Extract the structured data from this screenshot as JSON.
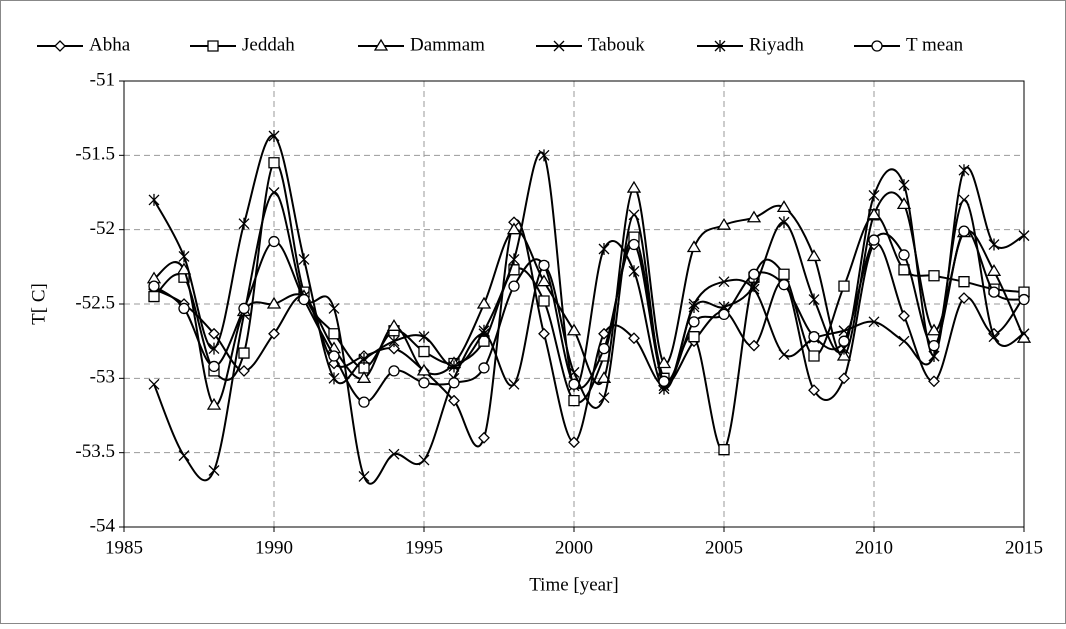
{
  "chart_data": {
    "type": "line",
    "smooth": true,
    "x_label": "Time [year]",
    "y_label": "T[ C]",
    "x": [
      1986,
      1987,
      1988,
      1989,
      1990,
      1991,
      1992,
      1993,
      1994,
      1995,
      1996,
      1997,
      1998,
      1999,
      2000,
      2001,
      2002,
      2003,
      2004,
      2005,
      2006,
      2007,
      2008,
      2009,
      2010,
      2011,
      2012,
      2013,
      2014,
      2015
    ],
    "xlim": [
      1985,
      2015
    ],
    "xticks": [
      1985,
      1990,
      1995,
      2000,
      2005,
      2010,
      2015
    ],
    "ylim": [
      -54,
      -51
    ],
    "yticks": [
      -54,
      -53.5,
      -53,
      -52.5,
      -52,
      -51.5,
      -51
    ],
    "grid": true,
    "legend": "top",
    "series": [
      {
        "name": "Abha",
        "color": "#000000",
        "marker": "diamond",
        "values": [
          -52.4,
          -52.5,
          -52.7,
          -52.95,
          -52.7,
          -52.45,
          -52.9,
          -52.85,
          -52.8,
          -52.95,
          -53.15,
          -53.4,
          -51.95,
          -52.7,
          -53.43,
          -52.7,
          -52.73,
          -53.05,
          -52.75,
          -52.55,
          -52.78,
          -52.35,
          -53.08,
          -53.0,
          -52.1,
          -52.58,
          -53.02,
          -52.46,
          -52.7,
          -52.45
        ]
      },
      {
        "name": "Jeddah",
        "color": "#000000",
        "marker": "square",
        "values": [
          -52.45,
          -52.32,
          -52.95,
          -52.83,
          -51.55,
          -52.42,
          -52.7,
          -52.93,
          -52.68,
          -52.82,
          -52.9,
          -52.75,
          -52.27,
          -52.48,
          -53.15,
          -52.85,
          -52.05,
          -53.0,
          -52.72,
          -53.48,
          -52.32,
          -52.3,
          -52.85,
          -52.38,
          -51.9,
          -52.27,
          -52.31,
          -52.35,
          -52.4,
          -52.42
        ]
      },
      {
        "name": "Dammam",
        "color": "#000000",
        "marker": "triangle",
        "values": [
          -52.33,
          -52.27,
          -53.18,
          -52.55,
          -52.5,
          -52.45,
          -52.8,
          -53.0,
          -52.65,
          -52.95,
          -52.9,
          -52.5,
          -52.0,
          -52.35,
          -52.68,
          -53.0,
          -51.72,
          -52.9,
          -52.12,
          -51.97,
          -51.92,
          -51.85,
          -52.18,
          -52.85,
          -51.9,
          -51.83,
          -52.68,
          -52.02,
          -52.28,
          -52.73
        ]
      },
      {
        "name": "Tabouk",
        "color": "#000000",
        "marker": "x",
        "values": [
          -53.04,
          -53.52,
          -53.62,
          -52.57,
          -51.75,
          -52.45,
          -52.53,
          -53.66,
          -53.51,
          -53.55,
          -53.0,
          -52.7,
          -53.04,
          -52.25,
          -52.96,
          -53.13,
          -51.9,
          -53.05,
          -52.5,
          -52.35,
          -52.4,
          -52.84,
          -52.73,
          -52.68,
          -52.62,
          -52.75,
          -52.85,
          -51.8,
          -52.72,
          -52.7
        ]
      },
      {
        "name": "Riyadh",
        "color": "#000000",
        "marker": "asterisk",
        "values": [
          -51.8,
          -52.18,
          -52.8,
          -51.96,
          -51.37,
          -52.2,
          -53.0,
          -52.87,
          -52.75,
          -52.72,
          -52.92,
          -52.68,
          -52.2,
          -51.5,
          -53.05,
          -52.13,
          -52.28,
          -53.07,
          -52.52,
          -52.52,
          -52.38,
          -51.95,
          -52.47,
          -52.8,
          -51.77,
          -51.7,
          -52.85,
          -51.6,
          -52.1,
          -52.04
        ]
      },
      {
        "name": "T mean",
        "color": "#000000",
        "marker": "circle",
        "values": [
          -52.38,
          -52.53,
          -52.92,
          -52.53,
          -52.08,
          -52.47,
          -52.85,
          -53.16,
          -52.95,
          -53.03,
          -53.03,
          -52.93,
          -52.38,
          -52.24,
          -53.04,
          -52.8,
          -52.1,
          -53.02,
          -52.62,
          -52.57,
          -52.3,
          -52.37,
          -52.72,
          -52.75,
          -52.07,
          -52.17,
          -52.78,
          -52.01,
          -52.42,
          -52.47
        ]
      }
    ]
  }
}
